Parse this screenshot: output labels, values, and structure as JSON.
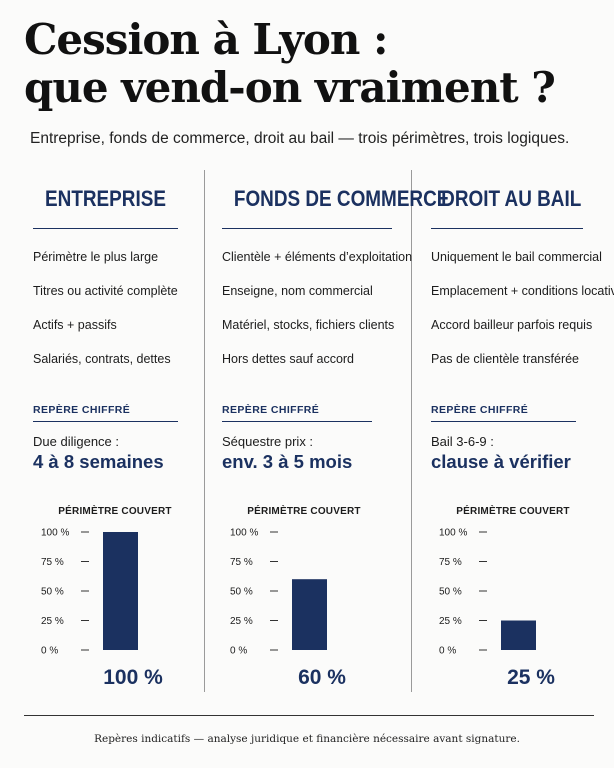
{
  "title": {
    "line1": "Cession à Lyon :",
    "line2": "que vend-on vraiment ?"
  },
  "subtitle": "Entreprise, fonds de commerce, droit au bail — trois périmètres, trois logiques.",
  "colors": {
    "navy": "#1b3160",
    "text": "#1c1c1c"
  },
  "columns": [
    {
      "heading": "ENTREPRISE",
      "features": [
        "Périmètre le plus large",
        "Titres ou activité complète",
        "Actifs + passifs",
        "Salariés, contrats, dettes"
      ],
      "repere": {
        "label": "REPÈRE CHIFFRÉ",
        "caption": "Due diligence :",
        "value": "4 à 8 semaines"
      },
      "chart_title": "PÉRIMÈTRE COUVERT",
      "chart_value_label": "100 %"
    },
    {
      "heading": "FONDS DE COMMERCE",
      "features": [
        "Clientèle + éléments d’exploitation",
        "Enseigne, nom commercial",
        "Matériel, stocks, fichiers clients",
        "Hors dettes sauf accord"
      ],
      "repere": {
        "label": "REPÈRE CHIFFRÉ",
        "caption": "Séquestre prix :",
        "value": "env. 3 à 5 mois"
      },
      "chart_title": "PÉRIMÈTRE COUVERT",
      "chart_value_label": "60 %"
    },
    {
      "heading": "DROIT AU BAIL",
      "features": [
        "Uniquement le bail commercial",
        "Emplacement + conditions locatives",
        "Accord bailleur parfois requis",
        "Pas de clientèle transférée"
      ],
      "repere": {
        "label": "REPÈRE CHIFFRÉ",
        "caption": "Bail 3-6-9 :",
        "value": "clause à vérifier"
      },
      "chart_title": "PÉRIMÈTRE COUVERT",
      "chart_value_label": "25 %"
    }
  ],
  "chart_data": [
    {
      "type": "bar",
      "title": "PÉRIMÈTRE COUVERT",
      "categories": [
        "ENTREPRISE"
      ],
      "values": [
        100
      ],
      "ylim": [
        0,
        100
      ],
      "y_ticks": [
        0,
        25,
        50,
        75,
        100
      ],
      "y_tick_labels": [
        "0 %",
        "25 %",
        "50 %",
        "75 %",
        "100 %"
      ],
      "color": "#1b3160"
    },
    {
      "type": "bar",
      "title": "PÉRIMÈTRE COUVERT",
      "categories": [
        "FONDS DE COMMERCE"
      ],
      "values": [
        60
      ],
      "ylim": [
        0,
        100
      ],
      "y_ticks": [
        0,
        25,
        50,
        75,
        100
      ],
      "y_tick_labels": [
        "0 %",
        "25 %",
        "50 %",
        "75 %",
        "100 %"
      ],
      "color": "#1b3160"
    },
    {
      "type": "bar",
      "title": "PÉRIMÈTRE COUVERT",
      "categories": [
        "DROIT AU BAIL"
      ],
      "values": [
        25
      ],
      "ylim": [
        0,
        100
      ],
      "y_ticks": [
        0,
        25,
        50,
        75,
        100
      ],
      "y_tick_labels": [
        "0 %",
        "25 %",
        "50 %",
        "75 %",
        "100 %"
      ],
      "color": "#1b3160"
    }
  ],
  "footnote": "Repères indicatifs — analyse juridique et financière nécessaire avant signature."
}
